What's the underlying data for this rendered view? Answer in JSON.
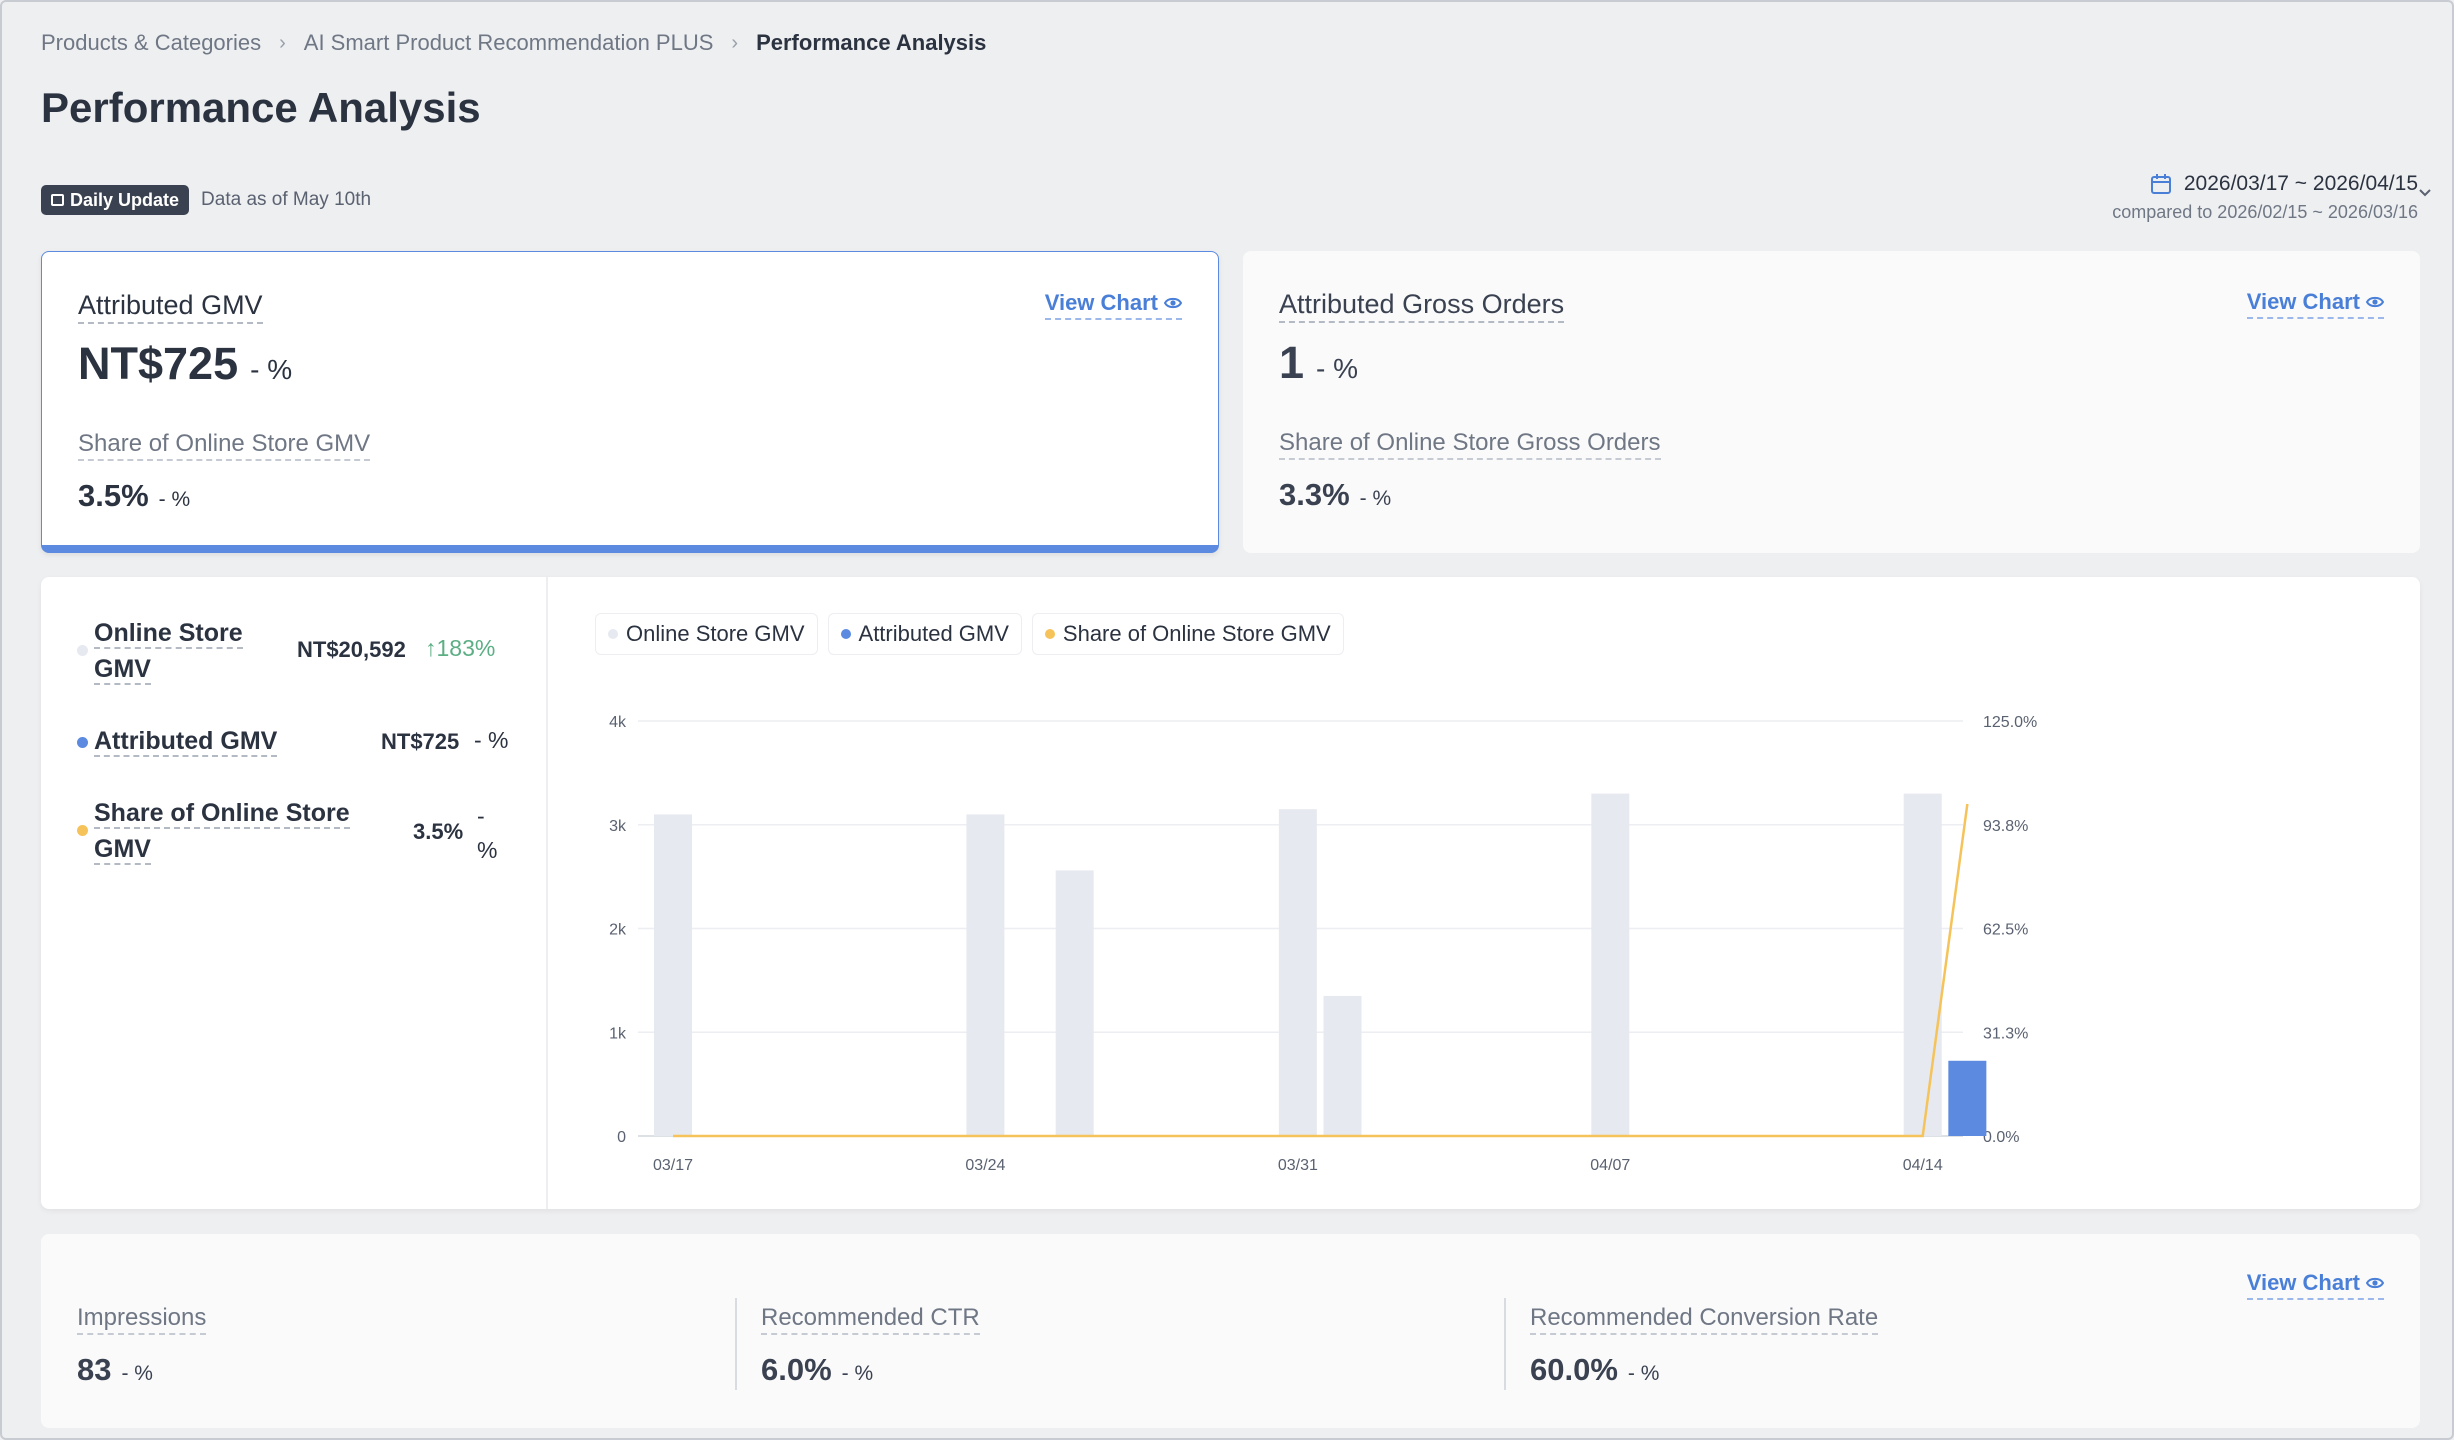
{
  "breadcrumb": {
    "items": [
      "Products & Categories",
      "AI Smart Product Recommendation PLUS"
    ],
    "current": "Performance Analysis"
  },
  "page_title": "Performance Analysis",
  "update": {
    "badge": "Daily Update",
    "note": "Data as of May 10th"
  },
  "date_range": {
    "main": "2026/03/17 ~ 2026/04/15",
    "compare": "compared to 2026/02/15 ~ 2026/03/16"
  },
  "cards": {
    "gmv": {
      "label": "Attributed GMV",
      "value": "NT$725",
      "change": "- %",
      "share_label": "Share of Online Store GMV",
      "share_value": "3.5%",
      "share_change": "- %",
      "view_chart": "View Chart"
    },
    "orders": {
      "label": "Attributed Gross Orders",
      "value": "1",
      "change": "- %",
      "share_label": "Share of Online Store Gross Orders",
      "share_value": "3.3%",
      "share_change": "- %",
      "view_chart": "View Chart"
    }
  },
  "summary": {
    "online_store": {
      "name_line1": "Online Store",
      "name_line2": "GMV",
      "value": "NT$20,592",
      "change": "183%"
    },
    "attributed": {
      "name": "Attributed GMV",
      "value": "NT$725",
      "change": "- %"
    },
    "share": {
      "name_line1": "Share of Online Store",
      "name_line2": "GMV",
      "value": "3.5%",
      "change_line1": "-",
      "change_line2": "%"
    }
  },
  "chart_toggles": [
    "Online Store GMV",
    "Attributed GMV",
    "Share of Online Store GMV"
  ],
  "colors": {
    "online_store": "#e6e9f0",
    "attributed": "#5b8ae0",
    "share": "#f5c35a",
    "positive": "#5cae84"
  },
  "chart_data": {
    "type": "bar",
    "x": [
      "03/17",
      "03/18",
      "03/19",
      "03/20",
      "03/21",
      "03/22",
      "03/23",
      "03/24",
      "03/25",
      "03/26",
      "03/27",
      "03/28",
      "03/29",
      "03/30",
      "03/31",
      "04/01",
      "04/02",
      "04/03",
      "04/04",
      "04/05",
      "04/06",
      "04/07",
      "04/08",
      "04/09",
      "04/10",
      "04/11",
      "04/12",
      "04/13",
      "04/14",
      "04/15"
    ],
    "x_tick_labels": [
      "03/17",
      "03/24",
      "03/31",
      "04/07",
      "04/14"
    ],
    "series": [
      {
        "name": "Online Store GMV",
        "type": "bar",
        "axis": "left",
        "values": [
          3100,
          0,
          0,
          0,
          0,
          0,
          0,
          3100,
          0,
          2560,
          0,
          0,
          0,
          0,
          3150,
          1350,
          0,
          0,
          0,
          0,
          0,
          3300,
          0,
          0,
          0,
          0,
          0,
          0,
          3300,
          0
        ]
      },
      {
        "name": "Attributed GMV",
        "type": "bar",
        "axis": "left",
        "values": [
          0,
          0,
          0,
          0,
          0,
          0,
          0,
          0,
          0,
          0,
          0,
          0,
          0,
          0,
          0,
          0,
          0,
          0,
          0,
          0,
          0,
          0,
          0,
          0,
          0,
          0,
          0,
          0,
          0,
          725
        ]
      },
      {
        "name": "Share of Online Store GMV",
        "type": "line",
        "axis": "right",
        "values": [
          0,
          0,
          0,
          0,
          0,
          0,
          0,
          0,
          0,
          0,
          0,
          0,
          0,
          0,
          0,
          0,
          0,
          0,
          0,
          0,
          0,
          0,
          0,
          0,
          0,
          0,
          0,
          0,
          0,
          100
        ]
      }
    ],
    "y_left": {
      "ticks": [
        "0",
        "1k",
        "2k",
        "3k",
        "4k"
      ],
      "range": [
        0,
        4000
      ]
    },
    "y_right": {
      "ticks": [
        "0.0%",
        "31.3%",
        "62.5%",
        "93.8%",
        "125.0%"
      ],
      "range": [
        0,
        125
      ]
    },
    "grid": true,
    "legend_position": "top-left"
  },
  "bottom": {
    "view_chart": "View Chart",
    "metrics": [
      {
        "label": "Impressions",
        "value": "83",
        "change": "- %"
      },
      {
        "label": "Recommended CTR",
        "value": "6.0%",
        "change": "- %"
      },
      {
        "label": "Recommended Conversion Rate",
        "value": "60.0%",
        "change": "- %"
      }
    ]
  }
}
